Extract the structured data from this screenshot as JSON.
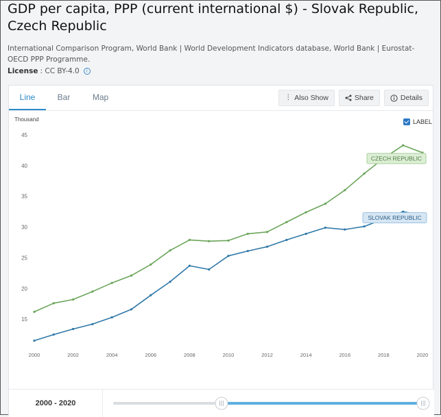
{
  "header": {
    "title": "GDP per capita, PPP (current international $) - Slovak Republic, Czech Republic",
    "source": "International Comparison Program, World Bank | World Development Indicators database, World Bank | Eurostat-OECD PPP Programme.",
    "license_label": "License",
    "license_value": ": CC BY-4.0",
    "info_icon": "i"
  },
  "tabs": [
    {
      "label": "Line"
    },
    {
      "label": "Bar"
    },
    {
      "label": "Map"
    }
  ],
  "toolbar": {
    "also_show": "Also Show",
    "share": "Share",
    "details": "Details"
  },
  "label_toggle": "LABEL",
  "range": {
    "label": "2000 - 2020",
    "start": 2000,
    "end": 2020
  },
  "colors": {
    "czech": "#6aa55a",
    "slovak": "#2f78a8",
    "accent": "#2a8ac8"
  },
  "chart_data": {
    "type": "line",
    "ylabel": "Thousand",
    "ylim": [
      10,
      45
    ],
    "yticks": [
      "15",
      "20",
      "25",
      "30",
      "35",
      "40",
      "45"
    ],
    "xticks": [
      "2000",
      "2002",
      "2004",
      "2006",
      "2008",
      "2010",
      "2012",
      "2014",
      "2016",
      "2018",
      "2020"
    ],
    "x": [
      2000,
      2001,
      2002,
      2003,
      2004,
      2005,
      2006,
      2007,
      2008,
      2009,
      2010,
      2011,
      2012,
      2013,
      2014,
      2015,
      2016,
      2017,
      2018,
      2019,
      2020
    ],
    "series": [
      {
        "name": "CZECH REPUBLIC",
        "color": "#6aa55a",
        "values": [
          16.2,
          17.6,
          18.2,
          19.5,
          20.9,
          22.1,
          23.9,
          26.2,
          27.9,
          27.7,
          27.8,
          28.9,
          29.2,
          30.8,
          32.4,
          33.8,
          36.0,
          38.7,
          41.2,
          43.3,
          42.1
        ]
      },
      {
        "name": "SLOVAK REPUBLIC",
        "color": "#2f78a8",
        "values": [
          11.5,
          12.5,
          13.4,
          14.2,
          15.3,
          16.6,
          18.9,
          21.1,
          23.7,
          23.1,
          25.3,
          26.1,
          26.8,
          27.9,
          28.9,
          29.9,
          29.6,
          30.1,
          31.3,
          32.5,
          31.9
        ]
      }
    ]
  }
}
